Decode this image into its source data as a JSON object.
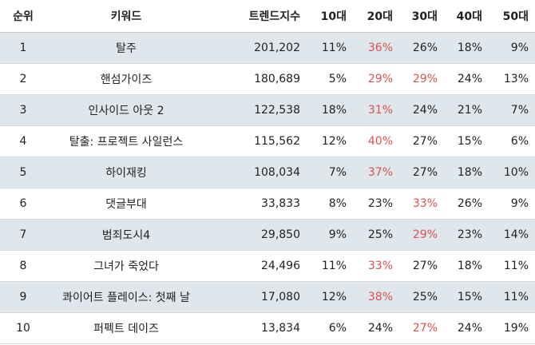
{
  "headers": [
    "순위",
    "키워드",
    "트렌드지수",
    "10대",
    "20대",
    "30대",
    "40대",
    "50대"
  ],
  "highlight_color": "#d9534f",
  "rows": [
    {
      "rank": "1",
      "keyword": "탈주",
      "index": "201,202",
      "a10": "11%",
      "a20": "36%",
      "a30": "26%",
      "a40": "18%",
      "a50": "9%",
      "highlight": [
        "a20"
      ]
    },
    {
      "rank": "2",
      "keyword": "핸섬가이즈",
      "index": "180,689",
      "a10": "5%",
      "a20": "29%",
      "a30": "29%",
      "a40": "24%",
      "a50": "13%",
      "highlight": [
        "a20",
        "a30"
      ]
    },
    {
      "rank": "3",
      "keyword": "인사이드 아웃 2",
      "index": "122,538",
      "a10": "18%",
      "a20": "31%",
      "a30": "24%",
      "a40": "21%",
      "a50": "7%",
      "highlight": [
        "a20"
      ]
    },
    {
      "rank": "4",
      "keyword": "탈출: 프로젝트 사일런스",
      "index": "115,562",
      "a10": "12%",
      "a20": "40%",
      "a30": "27%",
      "a40": "15%",
      "a50": "6%",
      "highlight": [
        "a20"
      ]
    },
    {
      "rank": "5",
      "keyword": "하이재킹",
      "index": "108,034",
      "a10": "7%",
      "a20": "37%",
      "a30": "27%",
      "a40": "18%",
      "a50": "10%",
      "highlight": [
        "a20"
      ]
    },
    {
      "rank": "6",
      "keyword": "댓글부대",
      "index": "33,833",
      "a10": "8%",
      "a20": "23%",
      "a30": "33%",
      "a40": "26%",
      "a50": "9%",
      "highlight": [
        "a30"
      ]
    },
    {
      "rank": "7",
      "keyword": "범죄도시4",
      "index": "29,850",
      "a10": "9%",
      "a20": "25%",
      "a30": "29%",
      "a40": "23%",
      "a50": "14%",
      "highlight": [
        "a30"
      ]
    },
    {
      "rank": "8",
      "keyword": "그녀가 죽었다",
      "index": "24,496",
      "a10": "11%",
      "a20": "33%",
      "a30": "27%",
      "a40": "18%",
      "a50": "11%",
      "highlight": [
        "a20"
      ]
    },
    {
      "rank": "9",
      "keyword": "콰이어트 플레이스: 첫째 날",
      "index": "17,080",
      "a10": "12%",
      "a20": "38%",
      "a30": "25%",
      "a40": "15%",
      "a50": "11%",
      "highlight": [
        "a20"
      ]
    },
    {
      "rank": "10",
      "keyword": "퍼펙트 데이즈",
      "index": "13,834",
      "a10": "6%",
      "a20": "24%",
      "a30": "27%",
      "a40": "24%",
      "a50": "19%",
      "highlight": [
        "a30"
      ]
    }
  ]
}
